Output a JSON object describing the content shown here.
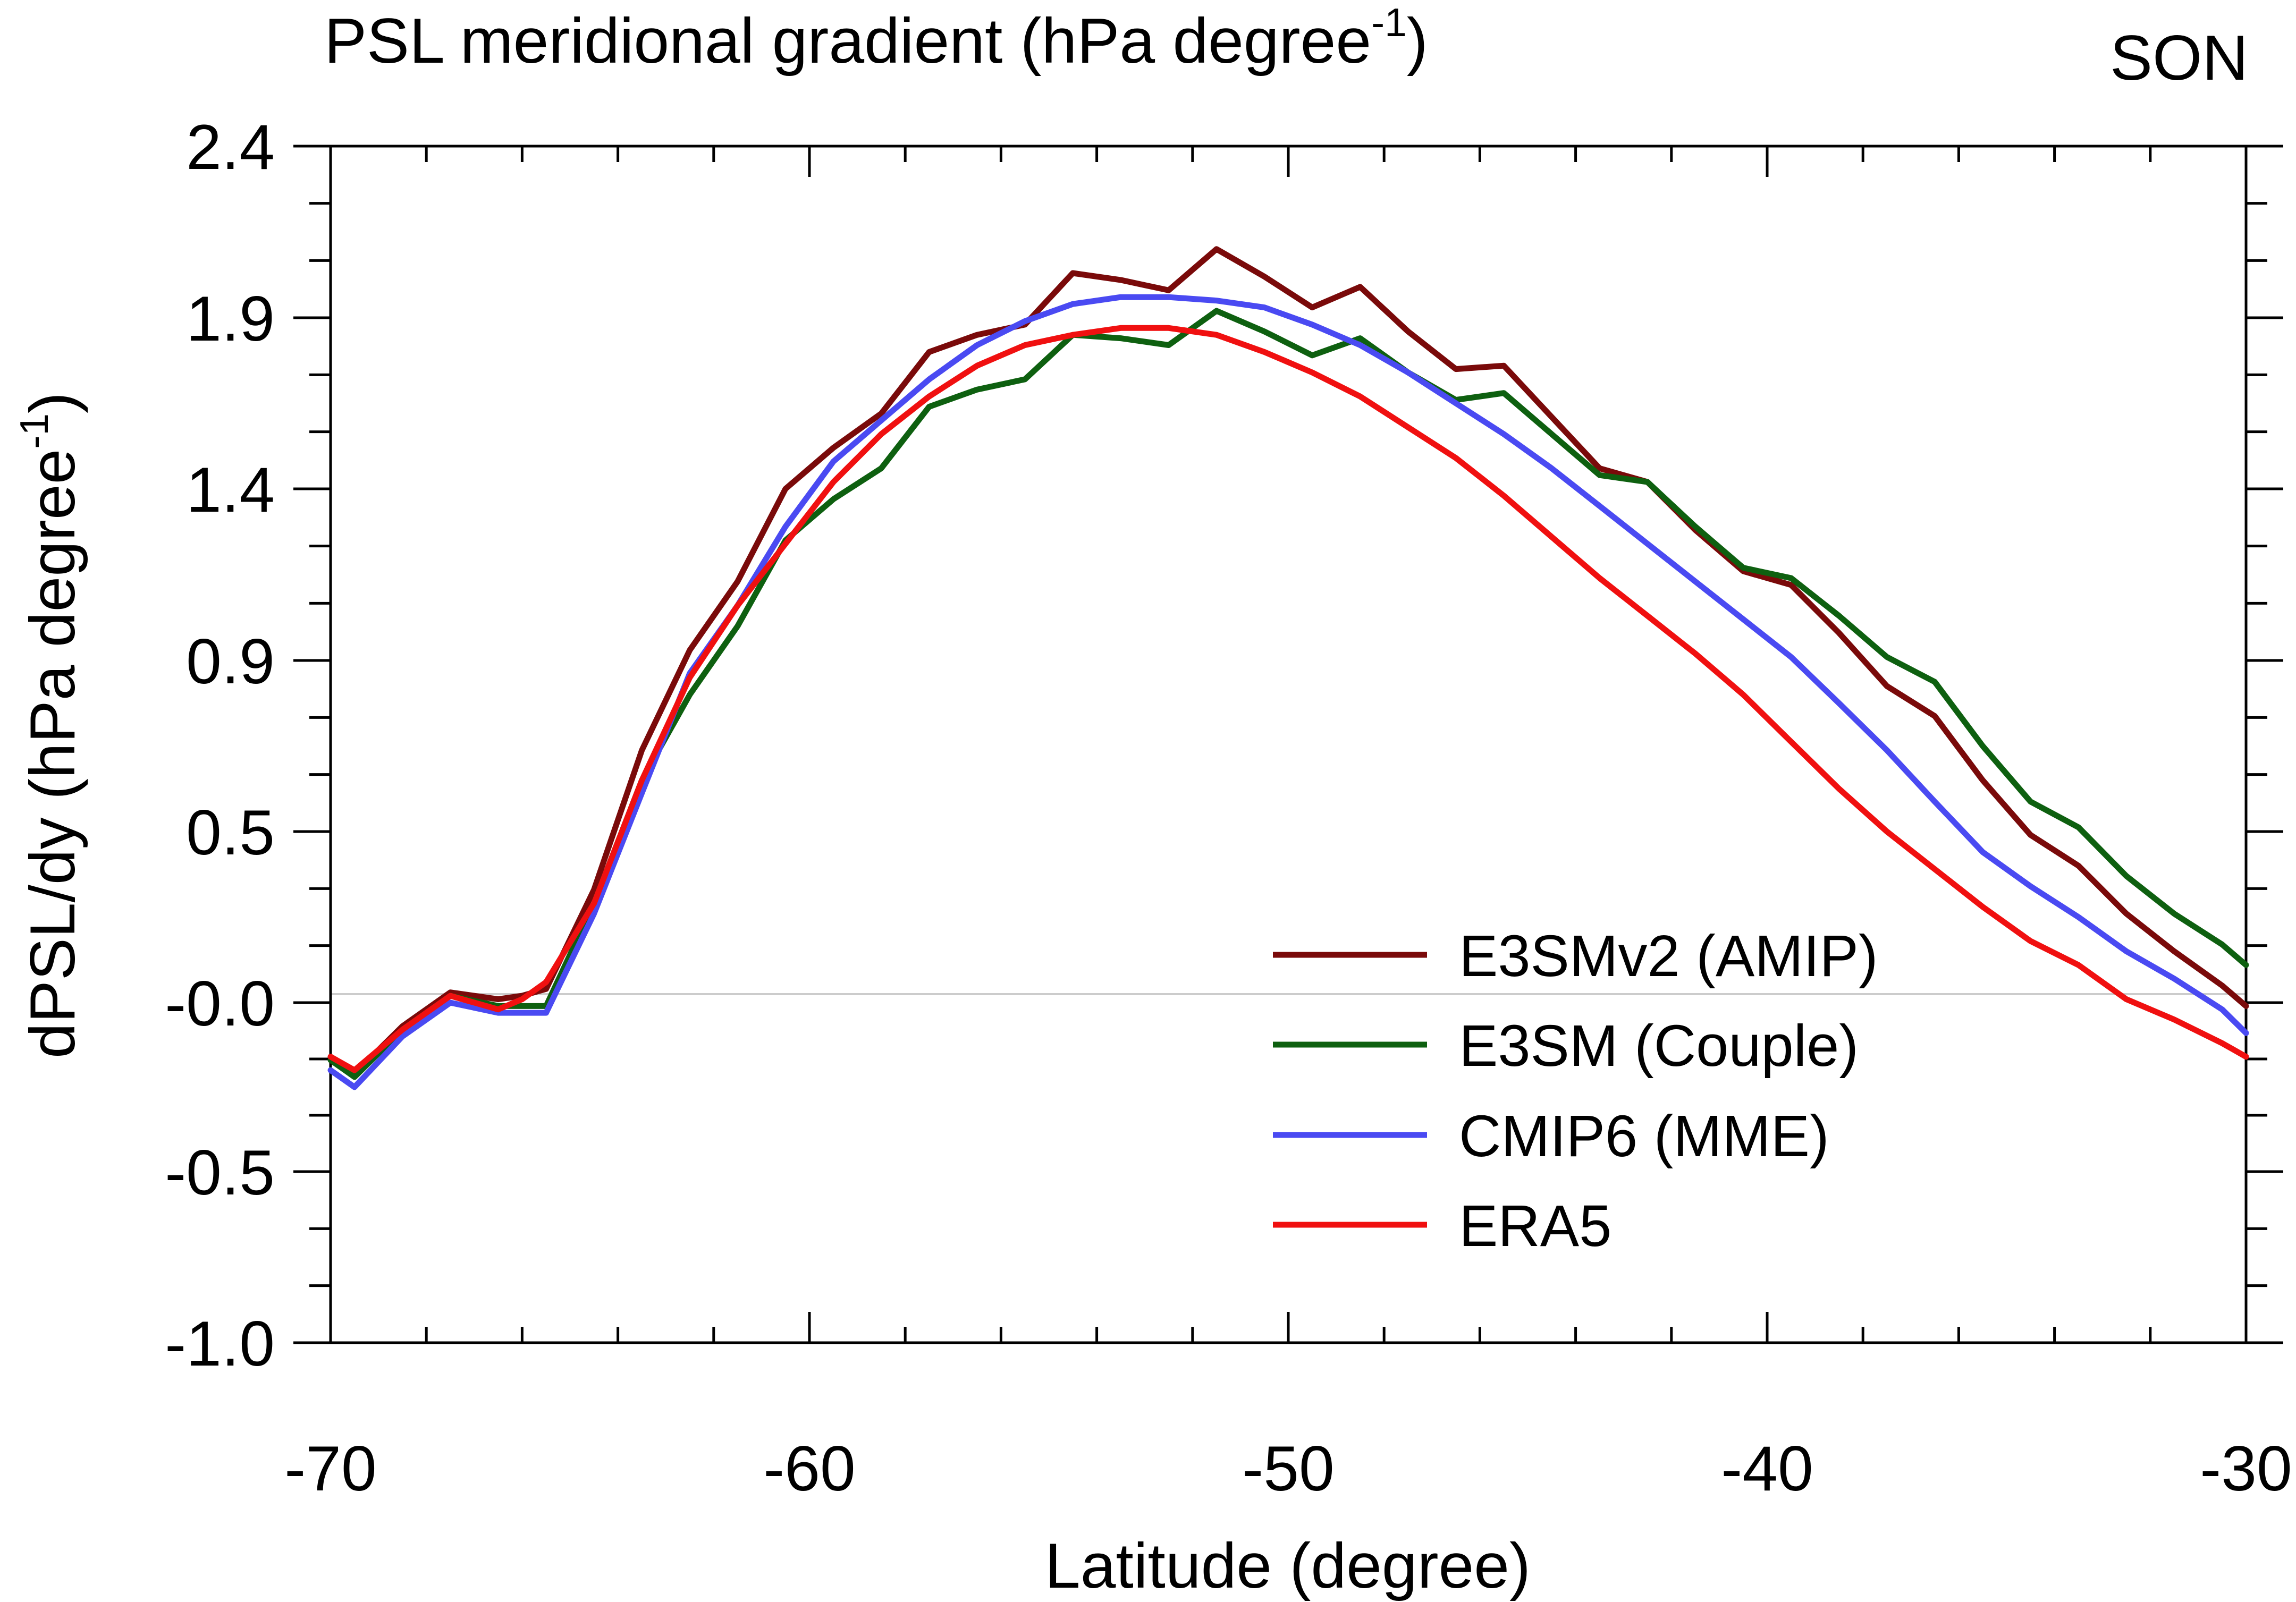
{
  "chart_data": {
    "type": "line",
    "title": "PSL meridional gradient (hPa degree",
    "title_sup": "-1",
    "title_close": ")",
    "season": "SON",
    "xlabel": "Latitude (degree)",
    "ylabel": "dPSL/dy (hPa degree",
    "ylabel_sup": "-1",
    "ylabel_close": ")",
    "xlim": [
      -70,
      -30
    ],
    "ylim": [
      -1.0,
      2.4
    ],
    "x_ticks": [
      -70,
      -60,
      -50,
      -40,
      -30
    ],
    "x_tick_labels": [
      "-70",
      "-60",
      "-50",
      "-40",
      "-30"
    ],
    "y_ticks": [
      2.4,
      1.9,
      1.4,
      0.9,
      0.5,
      0.0,
      -0.5,
      -1.0
    ],
    "y_tick_labels": [
      "2.4",
      "1.9",
      "1.4",
      "0.9",
      "0.5",
      "-0.0",
      "-0.5",
      "-1.0"
    ],
    "zero_line": true,
    "legend_position": "lower-right",
    "x": [
      -70,
      -69.5,
      -68.5,
      -67.5,
      -66.5,
      -66,
      -65.5,
      -64.5,
      -63.5,
      -62.5,
      -61.5,
      -60.5,
      -59.5,
      -58.5,
      -57.5,
      -56.5,
      -55.5,
      -54.5,
      -53.5,
      -52.5,
      -51.5,
      -50.5,
      -49.5,
      -48.5,
      -47.5,
      -46.5,
      -45.5,
      -44.5,
      -43.5,
      -42.5,
      -41.5,
      -40.5,
      -39.5,
      -38.5,
      -37.5,
      -36.5,
      -35.5,
      -34.5,
      -33.5,
      -32.5,
      -31.5,
      -30.5,
      -30
    ],
    "series": [
      {
        "name": "E3SMv2 (AMIP)",
        "color": "#7a0a0a",
        "values": [
          -0.16,
          -0.21,
          -0.07,
          0.03,
          0.01,
          0.02,
          0.04,
          0.33,
          0.69,
          0.93,
          1.13,
          1.4,
          1.52,
          1.62,
          1.8,
          1.85,
          1.88,
          2.03,
          2.01,
          1.98,
          2.1,
          2.02,
          1.93,
          1.99,
          1.86,
          1.75,
          1.76,
          1.61,
          1.46,
          1.42,
          1.28,
          1.16,
          1.12,
          0.98,
          0.84,
          0.77,
          0.62,
          0.49,
          0.4,
          0.26,
          0.15,
          0.05,
          -0.01
        ]
      },
      {
        "name": "E3SM (Couple)",
        "color": "#0e6010",
        "values": [
          -0.17,
          -0.22,
          -0.08,
          0.02,
          -0.01,
          -0.01,
          -0.01,
          0.29,
          0.62,
          0.82,
          1.0,
          1.25,
          1.37,
          1.46,
          1.64,
          1.69,
          1.72,
          1.85,
          1.84,
          1.82,
          1.92,
          1.86,
          1.79,
          1.84,
          1.74,
          1.66,
          1.68,
          1.56,
          1.44,
          1.42,
          1.29,
          1.17,
          1.14,
          1.03,
          0.91,
          0.85,
          0.7,
          0.57,
          0.51,
          0.37,
          0.26,
          0.17,
          0.11
        ]
      },
      {
        "name": "CMIP6 (MME)",
        "color": "#4a4af2",
        "values": [
          -0.2,
          -0.25,
          -0.1,
          0.0,
          -0.03,
          -0.03,
          -0.03,
          0.26,
          0.59,
          0.87,
          1.06,
          1.29,
          1.48,
          1.6,
          1.72,
          1.82,
          1.89,
          1.94,
          1.96,
          1.96,
          1.95,
          1.93,
          1.88,
          1.82,
          1.74,
          1.65,
          1.56,
          1.46,
          1.35,
          1.24,
          1.13,
          1.02,
          0.91,
          0.8,
          0.69,
          0.57,
          0.44,
          0.34,
          0.25,
          0.15,
          0.07,
          -0.02,
          -0.09
        ]
      },
      {
        "name": "ERA5",
        "color": "#f01010",
        "values": [
          -0.16,
          -0.2,
          -0.08,
          0.02,
          -0.02,
          0.01,
          0.06,
          0.29,
          0.62,
          0.86,
          1.06,
          1.24,
          1.42,
          1.56,
          1.67,
          1.76,
          1.82,
          1.85,
          1.87,
          1.87,
          1.85,
          1.8,
          1.74,
          1.67,
          1.58,
          1.49,
          1.38,
          1.26,
          1.14,
          1.03,
          0.92,
          0.82,
          0.71,
          0.6,
          0.5,
          0.39,
          0.28,
          0.18,
          0.11,
          0.01,
          -0.05,
          -0.12,
          -0.16
        ]
      }
    ]
  }
}
